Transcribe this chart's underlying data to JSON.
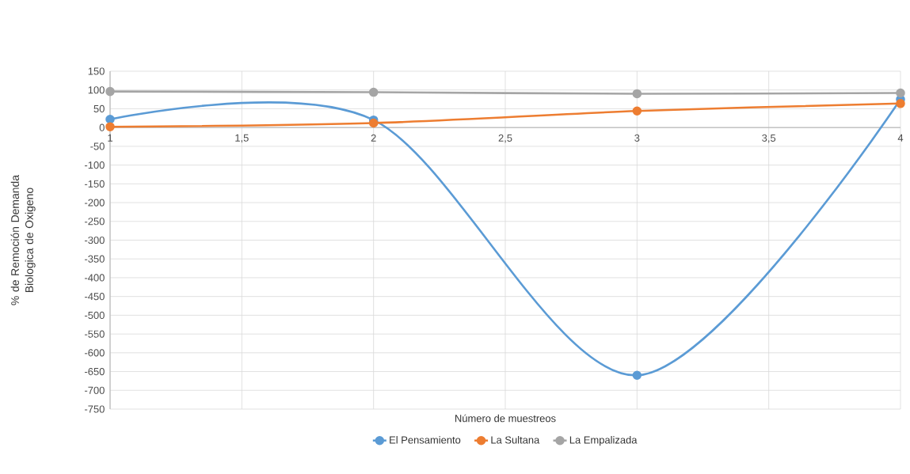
{
  "chart_data": {
    "type": "line",
    "xlabel": "Número de muestreos",
    "ylabel": "% de Remoción  Demanda Biologica de Oxigeno",
    "x": [
      1,
      2,
      3,
      4
    ],
    "series": [
      {
        "name": "El Pensamiento",
        "color": "#5b9bd5",
        "values": [
          22,
          20,
          -660,
          75
        ]
      },
      {
        "name": "La Sultana",
        "color": "#ed7d31",
        "values": [
          2,
          12,
          44,
          64
        ]
      },
      {
        "name": "La Empalizada",
        "color": "#a5a5a5",
        "values": [
          96,
          94,
          90,
          92
        ]
      }
    ],
    "xlim": [
      1,
      4
    ],
    "xticks": [
      1,
      {
        "value": 1.5,
        "label": "1,5"
      },
      2,
      {
        "value": 2.5,
        "label": "2,5"
      },
      3,
      {
        "value": 3.5,
        "label": "3,5"
      },
      4
    ],
    "ylim": [
      -750,
      150
    ],
    "yticks": [
      -750,
      -700,
      -650,
      -600,
      -550,
      -500,
      -450,
      -400,
      -350,
      -300,
      -250,
      -200,
      -150,
      -100,
      -50,
      0,
      50,
      100,
      150
    ],
    "grid": true,
    "legend": "bottom",
    "marker": "circle",
    "line_style": "solid"
  }
}
